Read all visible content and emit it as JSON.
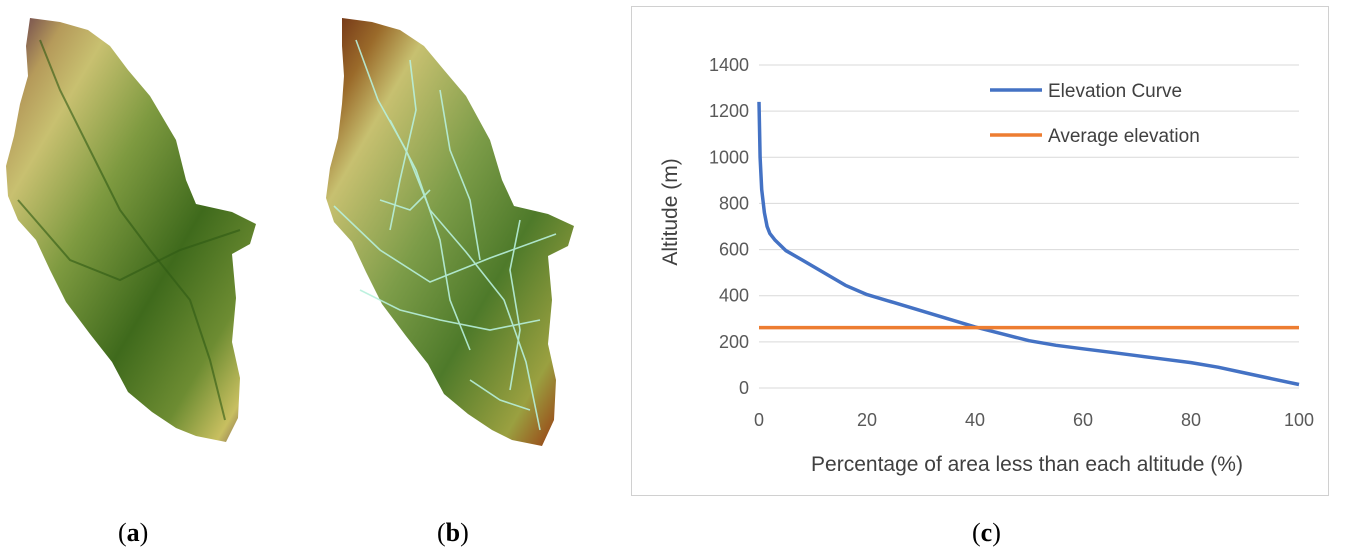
{
  "panels": {
    "a": "a",
    "b": "b",
    "c": "c"
  },
  "colors": {
    "elevation_curve": "#4472C4",
    "average_elevation": "#ED7D31",
    "gridline": "#d9d9d9"
  },
  "chart_data": {
    "type": "line",
    "title": "",
    "xlabel": "Percentage of area less than each altitude (%)",
    "ylabel": "Altitude (m)",
    "xlim": [
      0,
      100
    ],
    "ylim": [
      0,
      1400
    ],
    "xticks": [
      0,
      20,
      40,
      60,
      80,
      100
    ],
    "yticks": [
      0,
      200,
      400,
      600,
      800,
      1000,
      1200,
      1400
    ],
    "grid": "horizontal",
    "legend_position": "top-right",
    "series": [
      {
        "name": "Elevation Curve",
        "x": [
          0,
          0.2,
          0.5,
          1,
          1.5,
          2,
          3,
          5,
          8,
          12,
          16,
          20,
          25,
          30,
          35,
          40,
          45,
          50,
          55,
          60,
          65,
          70,
          75,
          80,
          85,
          90,
          95,
          100
        ],
        "y": [
          1240,
          1000,
          860,
          760,
          700,
          670,
          640,
          595,
          555,
          500,
          445,
          405,
          370,
          335,
          300,
          265,
          235,
          205,
          185,
          170,
          155,
          140,
          125,
          110,
          90,
          65,
          40,
          15
        ]
      },
      {
        "name": "Average elevation",
        "x": [
          0,
          100
        ],
        "y": [
          262,
          262
        ]
      }
    ]
  }
}
